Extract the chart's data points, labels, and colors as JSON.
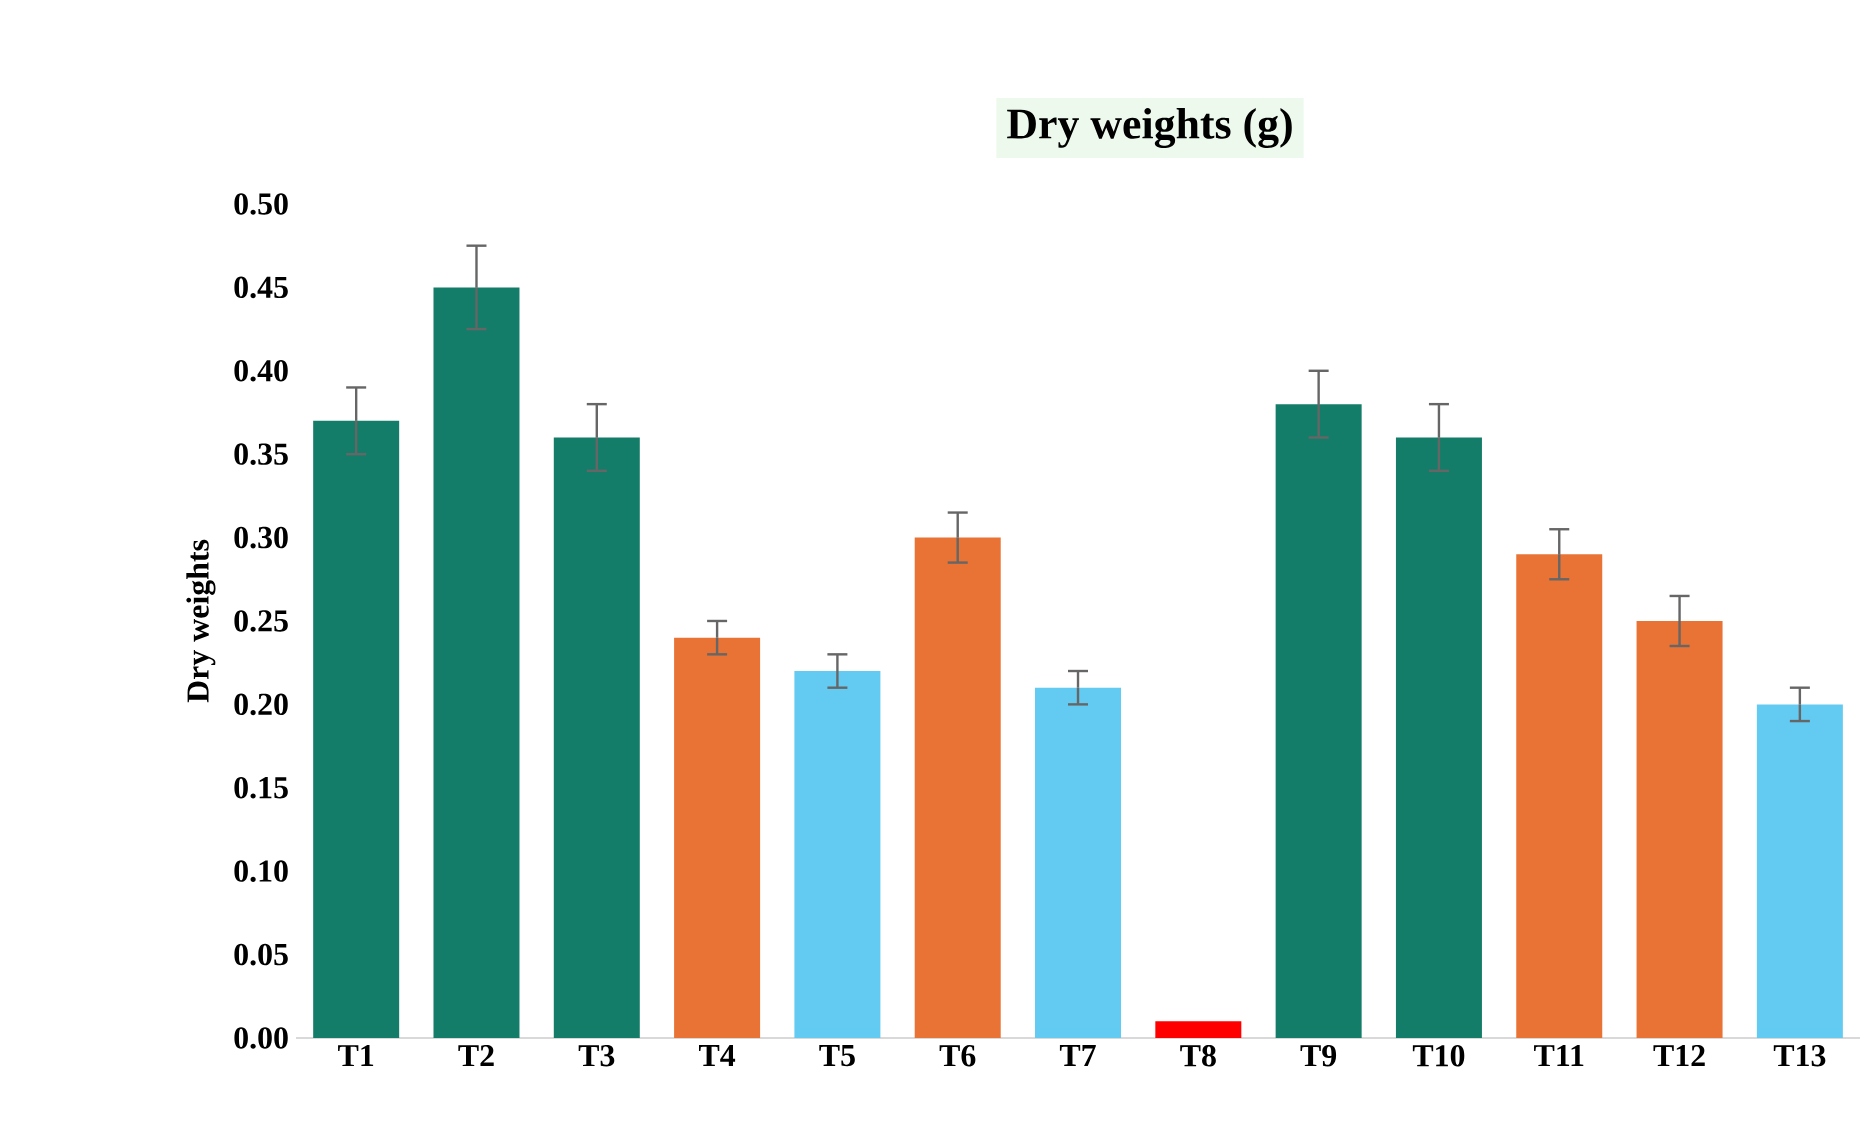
{
  "chart_data": {
    "type": "bar",
    "title": "Dry weights (g)",
    "ylabel": "Dry weights",
    "categories": [
      "T1",
      "T2",
      "T3",
      "T4",
      "T5",
      "T6",
      "T7",
      "T8",
      "T9",
      "T10",
      "T11",
      "T12",
      "T13"
    ],
    "values": [
      0.37,
      0.45,
      0.36,
      0.24,
      0.22,
      0.3,
      0.21,
      0.01,
      0.38,
      0.36,
      0.29,
      0.25,
      0.2
    ],
    "errors": [
      0.02,
      0.025,
      0.02,
      0.01,
      0.01,
      0.015,
      0.01,
      null,
      0.02,
      0.02,
      0.015,
      0.015,
      0.01
    ],
    "colors": [
      "#147d69",
      "#147d69",
      "#147d69",
      "#e97334",
      "#63caf2",
      "#e97334",
      "#63caf2",
      "#ff0000",
      "#147d69",
      "#147d69",
      "#e97334",
      "#e97334",
      "#63caf2"
    ],
    "ylim": [
      0,
      0.5
    ],
    "yticks": [
      {
        "value": 0,
        "label": "0.00"
      },
      {
        "value": 0.05,
        "label": "0.05"
      },
      {
        "value": 0.1,
        "label": "0.10"
      },
      {
        "value": 0.15,
        "label": "0.15"
      },
      {
        "value": 0.2,
        "label": "0.20"
      },
      {
        "value": 0.25,
        "label": "0.25"
      },
      {
        "value": 0.3,
        "label": "0.30"
      },
      {
        "value": 0.35,
        "label": "0.35"
      },
      {
        "value": 0.4,
        "label": "0.40"
      },
      {
        "value": 0.45,
        "label": "0.45"
      },
      {
        "value": 0.5,
        "label": "0.50"
      }
    ]
  }
}
